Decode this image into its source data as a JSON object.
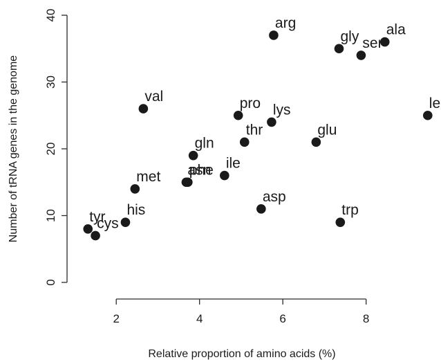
{
  "chart_data": {
    "type": "scatter",
    "xlabel": "Relative proportion of amino acids (%)",
    "ylabel": "Number of tRNA genes in the genome",
    "xlim": [
      1.2,
      9.5
    ],
    "ylim": [
      0,
      40
    ],
    "xticks": [
      2,
      4,
      6,
      8
    ],
    "yticks": [
      0,
      10,
      20,
      30,
      40
    ],
    "grid": false,
    "marker_color": "#1a1a1a",
    "points": [
      {
        "label": "arg",
        "x": 5.78,
        "y": 37
      },
      {
        "label": "ala",
        "x": 8.45,
        "y": 36
      },
      {
        "label": "gly",
        "x": 7.35,
        "y": 35
      },
      {
        "label": "ser",
        "x": 7.88,
        "y": 34
      },
      {
        "label": "val",
        "x": 2.65,
        "y": 26
      },
      {
        "label": "pro",
        "x": 4.93,
        "y": 25
      },
      {
        "label": "leu",
        "x": 9.48,
        "y": 25
      },
      {
        "label": "lys",
        "x": 5.73,
        "y": 24
      },
      {
        "label": "thr",
        "x": 5.08,
        "y": 21
      },
      {
        "label": "glu",
        "x": 6.8,
        "y": 21
      },
      {
        "label": "gln",
        "x": 3.85,
        "y": 19
      },
      {
        "label": "ile",
        "x": 4.6,
        "y": 16
      },
      {
        "label": "asn",
        "x": 3.68,
        "y": 15
      },
      {
        "label": "phe",
        "x": 3.72,
        "y": 15
      },
      {
        "label": "met",
        "x": 2.45,
        "y": 14
      },
      {
        "label": "asp",
        "x": 5.48,
        "y": 11
      },
      {
        "label": "his",
        "x": 2.22,
        "y": 9
      },
      {
        "label": "trp",
        "x": 7.38,
        "y": 9
      },
      {
        "label": "tyr",
        "x": 1.32,
        "y": 8
      },
      {
        "label": "cys",
        "x": 1.5,
        "y": 7
      }
    ]
  }
}
